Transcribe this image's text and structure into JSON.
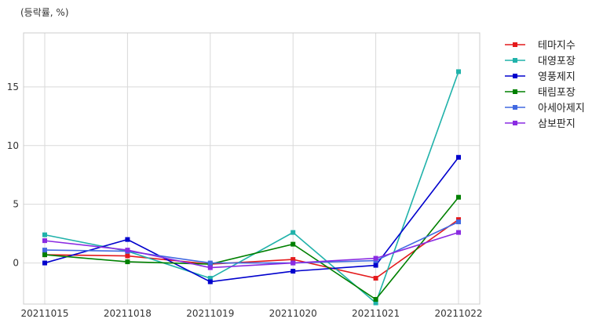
{
  "chart_data": {
    "type": "line",
    "title": "",
    "xlabel": "",
    "ylabel": "(등락률, %)",
    "categories": [
      "20211015",
      "20211018",
      "20211019",
      "20211020",
      "20211021",
      "20211022"
    ],
    "yticks": [
      0,
      5,
      10,
      15
    ],
    "ylim": [
      -3.5,
      19.6
    ],
    "grid": true,
    "legend": "outside-right-top",
    "marker": "square",
    "series": [
      {
        "name": "테마지수",
        "color": "#e41a1c",
        "values": [
          0.7,
          0.6,
          -0.1,
          0.3,
          -1.3,
          3.7
        ]
      },
      {
        "name": "대영포장",
        "color": "#20b2aa",
        "values": [
          2.4,
          1.0,
          -1.3,
          2.6,
          -3.4,
          16.3
        ]
      },
      {
        "name": "영풍제지",
        "color": "#0000cd",
        "values": [
          0.0,
          2.0,
          -1.6,
          -0.7,
          -0.2,
          9.0
        ]
      },
      {
        "name": "태림포장",
        "color": "#008000",
        "values": [
          0.7,
          0.1,
          -0.1,
          1.6,
          -3.1,
          5.6
        ]
      },
      {
        "name": "아세아제지",
        "color": "#4169e1",
        "values": [
          1.1,
          1.0,
          0.0,
          0.0,
          0.2,
          3.5
        ]
      },
      {
        "name": "삼보판지",
        "color": "#8a2be2",
        "values": [
          1.9,
          1.1,
          -0.4,
          0.0,
          0.4,
          2.6
        ]
      }
    ]
  }
}
